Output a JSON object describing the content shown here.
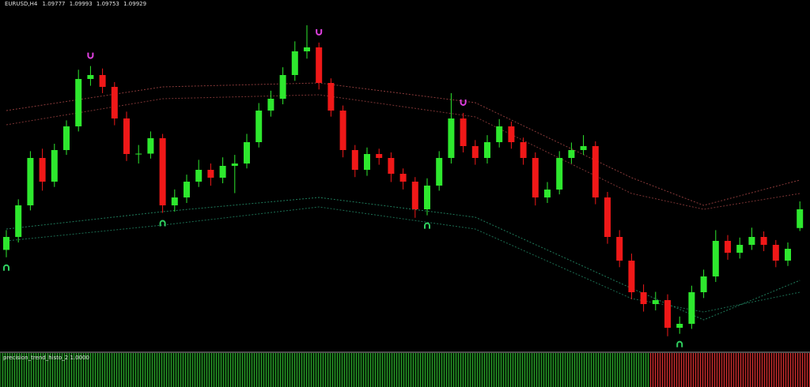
{
  "chart_data": {
    "type": "candlestick",
    "symbol": "EURUSD,H4",
    "open": [
      1.096,
      1.09705,
      1.09961,
      1.10345,
      1.10153,
      1.10409,
      1.10601,
      1.10985,
      1.11017,
      1.10921,
      1.10665,
      1.10377,
      1.1038,
      1.10505,
      1.09961,
      1.10025,
      1.10153,
      1.10249,
      1.10185,
      1.10281,
      1.103,
      1.10473,
      1.10729,
      1.10825,
      1.11017,
      1.11209,
      1.11241,
      1.10953,
      1.10729,
      1.10409,
      1.10249,
      1.10377,
      1.10345,
      1.10217,
      1.10153,
      1.09929,
      1.10121,
      1.10345,
      1.10665,
      1.10441,
      1.10345,
      1.10473,
      1.10601,
      1.10473,
      1.10345,
      1.10025,
      1.10089,
      1.10345,
      1.10409,
      1.10441,
      1.10025,
      1.09705,
      1.09513,
      1.09257,
      1.09161,
      1.09193,
      1.08969,
      1.09001,
      1.09257,
      1.09385,
      1.09673,
      1.09577,
      1.09641,
      1.09705,
      1.09641,
      1.09513,
      1.09777
    ],
    "high": [
      1.0976,
      1.1001,
      1.104,
      1.1042,
      1.1046,
      1.1065,
      1.1106,
      1.1109,
      1.1107,
      1.1096,
      1.1072,
      1.1045,
      1.1056,
      1.1054,
      1.1009,
      1.1021,
      1.1033,
      1.103,
      1.1035,
      1.1037,
      1.1054,
      1.1079,
      1.1089,
      1.1108,
      1.1129,
      1.1142,
      1.1128,
      1.1099,
      1.1077,
      1.1045,
      1.1043,
      1.1042,
      1.1039,
      1.1026,
      1.1019,
      1.1018,
      1.104,
      1.1087,
      1.1071,
      1.1049,
      1.1053,
      1.1066,
      1.1064,
      1.1051,
      1.1039,
      1.1015,
      1.104,
      1.1047,
      1.1053,
      1.1048,
      1.1007,
      1.0976,
      1.0957,
      1.0932,
      1.0926,
      1.0924,
      1.0906,
      1.0931,
      1.0944,
      1.0976,
      1.0972,
      1.097,
      1.0978,
      1.0975,
      1.0968,
      1.0966,
      1.09993
    ],
    "low": [
      1.0954,
      1.0966,
      1.0992,
      1.1008,
      1.1011,
      1.1037,
      1.1056,
      1.1093,
      1.1087,
      1.1061,
      1.1032,
      1.103,
      1.1034,
      1.099,
      1.0991,
      1.0998,
      1.1011,
      1.1012,
      1.1014,
      1.1006,
      1.1026,
      1.1043,
      1.1068,
      1.1078,
      1.1097,
      1.1115,
      1.109,
      1.1068,
      1.1035,
      1.1019,
      1.102,
      1.1029,
      1.1015,
      1.1009,
      1.0986,
      1.0988,
      1.1008,
      1.103,
      1.1039,
      1.1029,
      1.103,
      1.1043,
      1.1042,
      1.1029,
      1.0996,
      1.0998,
      1.1005,
      1.103,
      1.1037,
      1.0997,
      1.0965,
      1.0946,
      1.092,
      1.091,
      1.0911,
      1.089,
      1.0892,
      1.0896,
      1.0921,
      1.0934,
      1.0952,
      1.0953,
      1.096,
      1.0959,
      1.0946,
      1.0947,
      1.09753
    ],
    "close": [
      1.09705,
      1.09961,
      1.10345,
      1.10153,
      1.10409,
      1.10601,
      1.10985,
      1.11017,
      1.10921,
      1.10665,
      1.10377,
      1.1038,
      1.10505,
      1.09961,
      1.10025,
      1.10153,
      1.10249,
      1.10185,
      1.10281,
      1.103,
      1.10473,
      1.10729,
      1.10825,
      1.11017,
      1.11209,
      1.11241,
      1.10953,
      1.10729,
      1.10409,
      1.10249,
      1.10377,
      1.10345,
      1.10217,
      1.10153,
      1.09929,
      1.10121,
      1.10345,
      1.10665,
      1.10441,
      1.10345,
      1.10473,
      1.10601,
      1.10473,
      1.10345,
      1.10025,
      1.10089,
      1.10345,
      1.10409,
      1.10441,
      1.10025,
      1.09705,
      1.09513,
      1.09257,
      1.09161,
      1.09193,
      1.08969,
      1.09001,
      1.09257,
      1.09385,
      1.09673,
      1.09577,
      1.09641,
      1.09705,
      1.09641,
      1.09513,
      1.09609,
      1.09929
    ],
    "up_color": "#2ee82e",
    "down_color": "#f01818",
    "ylim": [
      1.08777,
      1.11625
    ],
    "bands": [
      {
        "color": "#8a3a3a",
        "x": [
          0,
          13,
          26,
          39,
          52,
          58,
          66
        ],
        "values": [
          1.10729,
          1.10921,
          1.10953,
          1.10793,
          1.10185,
          1.09961,
          1.10166
        ]
      },
      {
        "color": "#7a3333",
        "x": [
          0,
          13,
          26,
          39,
          52,
          58,
          66
        ],
        "values": [
          1.10614,
          1.10825,
          1.10857,
          1.10678,
          1.10057,
          1.09929,
          1.10057
        ]
      },
      {
        "color": "#1f7a5a",
        "x": [
          0,
          13,
          26,
          39,
          52,
          58,
          66
        ],
        "values": [
          1.09769,
          1.0991,
          1.10025,
          1.09865,
          1.09289,
          1.09033,
          1.09353
        ]
      },
      {
        "color": "#1b6b50",
        "x": [
          0,
          13,
          26,
          39,
          52,
          58,
          66
        ],
        "values": [
          1.09673,
          1.09801,
          1.09948,
          1.09769,
          1.09206,
          1.09097,
          1.09257
        ]
      }
    ],
    "signals": {
      "up": [
        0,
        13,
        35,
        56
      ],
      "down": [
        7,
        26,
        38
      ],
      "up_color": "#30d060",
      "down_color": "#e040e0"
    },
    "histogram": {
      "label": "precision_trend_histo_2 1.0000",
      "values": [
        1,
        1,
        1,
        1,
        1,
        1,
        1,
        1,
        1,
        1,
        1,
        1,
        1,
        1,
        1,
        1,
        1,
        1,
        1,
        1,
        1,
        1,
        1,
        1,
        1,
        1,
        1,
        1,
        1,
        1,
        1,
        1,
        1,
        1,
        1,
        1,
        1,
        1,
        1,
        1,
        1,
        1,
        1,
        1,
        1,
        1,
        1,
        1,
        1,
        1,
        1,
        1,
        1,
        1,
        -1,
        -1,
        -1,
        -1,
        -1,
        -1,
        -1,
        -1,
        -1,
        -1,
        -1,
        -1,
        -1
      ],
      "up_color": "#1f8a1f",
      "down_color": "#b02020"
    }
  }
}
